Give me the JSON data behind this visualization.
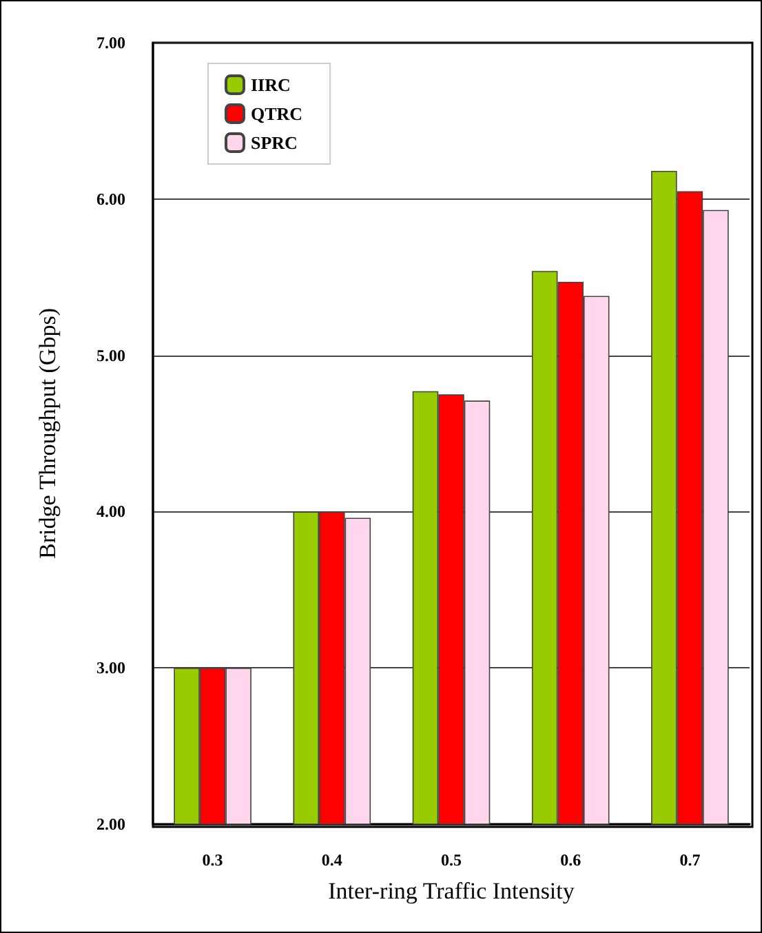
{
  "chart_data": {
    "type": "bar",
    "xlabel": "Inter-ring Traffic Intensity",
    "ylabel": "Bridge Throughput (Gbps)",
    "categories": [
      "0.3",
      "0.4",
      "0.5",
      "0.6",
      "0.7"
    ],
    "series": [
      {
        "name": "IIRC",
        "color": "#99cc00",
        "values": [
          3.0,
          4.0,
          4.77,
          5.54,
          6.18
        ]
      },
      {
        "name": "QTRC",
        "color": "#ff0000",
        "values": [
          3.0,
          4.0,
          4.75,
          5.47,
          6.05
        ]
      },
      {
        "name": "SPRC",
        "color": "#ffd6ec",
        "values": [
          3.0,
          3.96,
          4.71,
          5.38,
          5.93
        ]
      }
    ],
    "ylim": [
      2,
      7
    ],
    "yticks": [
      {
        "value": 2,
        "label": "2.00"
      },
      {
        "value": 3,
        "label": "3.00"
      },
      {
        "value": 4,
        "label": "4.00"
      },
      {
        "value": 5,
        "label": "5.00"
      },
      {
        "value": 6,
        "label": "6.00"
      },
      {
        "value": 7,
        "label": "7.00"
      }
    ],
    "grid": "y",
    "legend": "top left"
  }
}
